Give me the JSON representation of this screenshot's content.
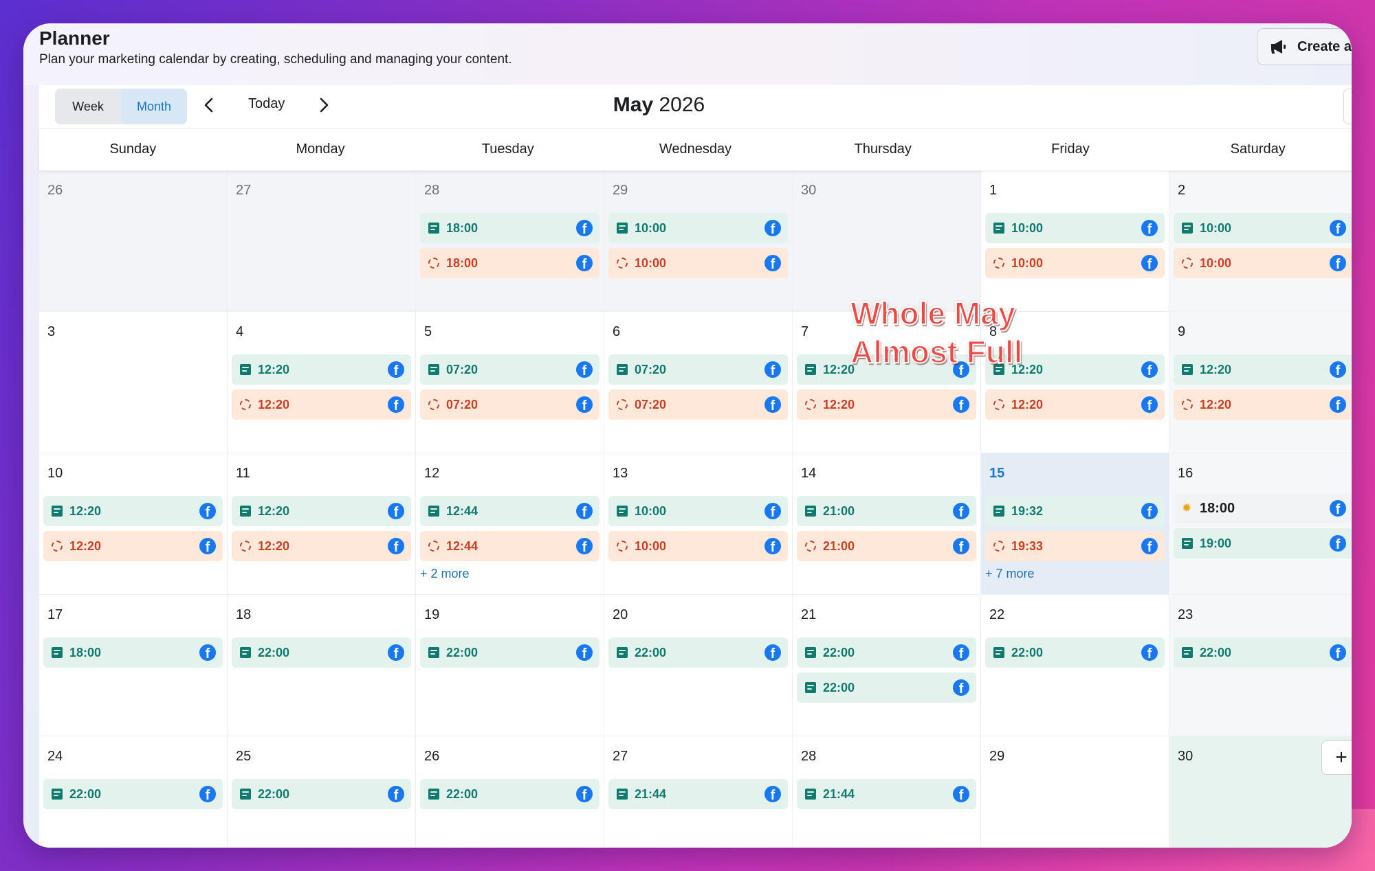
{
  "header": {
    "title": "Planner",
    "subtitle": "Plan your marketing calendar by creating, scheduling and managing your content.",
    "create_button": "Create ad"
  },
  "toolbar": {
    "view_week": "Week",
    "view_month": "Month",
    "active_view": "Month",
    "today_label": "Today",
    "month_name": "May",
    "year": "2026"
  },
  "weekdays": [
    "Sunday",
    "Monday",
    "Tuesday",
    "Wednesday",
    "Thursday",
    "Friday",
    "Saturday"
  ],
  "overlay_note": [
    "Whole May",
    "Almost Full"
  ],
  "colors": {
    "post_bg": "#e4f2ee",
    "post_text": "#0f7a6e",
    "draft_bg": "#fde8da",
    "draft_text": "#cc3f24",
    "today_bg": "#e4ecf6",
    "accent": "#1877f2"
  },
  "weeks": [
    [
      {
        "day": "26",
        "outside": true,
        "events": []
      },
      {
        "day": "27",
        "outside": true,
        "events": []
      },
      {
        "day": "28",
        "outside": true,
        "events": [
          {
            "type": "post",
            "time": "18:00"
          },
          {
            "type": "draft",
            "time": "18:00"
          }
        ]
      },
      {
        "day": "29",
        "outside": true,
        "events": [
          {
            "type": "post",
            "time": "10:00"
          },
          {
            "type": "draft",
            "time": "10:00"
          }
        ]
      },
      {
        "day": "30",
        "outside": true,
        "events": []
      },
      {
        "day": "1",
        "events": [
          {
            "type": "post",
            "time": "10:00"
          },
          {
            "type": "draft",
            "time": "10:00"
          }
        ]
      },
      {
        "day": "2",
        "weekend": true,
        "events": [
          {
            "type": "post",
            "time": "10:00"
          },
          {
            "type": "draft",
            "time": "10:00"
          }
        ]
      }
    ],
    [
      {
        "day": "3",
        "events": []
      },
      {
        "day": "4",
        "events": [
          {
            "type": "post",
            "time": "12:20"
          },
          {
            "type": "draft",
            "time": "12:20"
          }
        ]
      },
      {
        "day": "5",
        "events": [
          {
            "type": "post",
            "time": "07:20"
          },
          {
            "type": "draft",
            "time": "07:20"
          }
        ]
      },
      {
        "day": "6",
        "events": [
          {
            "type": "post",
            "time": "07:20"
          },
          {
            "type": "draft",
            "time": "07:20"
          }
        ]
      },
      {
        "day": "7",
        "events": [
          {
            "type": "post",
            "time": "12:20"
          },
          {
            "type": "draft",
            "time": "12:20"
          }
        ]
      },
      {
        "day": "8",
        "events": [
          {
            "type": "post",
            "time": "12:20"
          },
          {
            "type": "draft",
            "time": "12:20"
          }
        ]
      },
      {
        "day": "9",
        "weekend": true,
        "events": [
          {
            "type": "post",
            "time": "12:20"
          },
          {
            "type": "draft",
            "time": "12:20"
          }
        ]
      }
    ],
    [
      {
        "day": "10",
        "events": [
          {
            "type": "post",
            "time": "12:20"
          },
          {
            "type": "draft",
            "time": "12:20"
          }
        ]
      },
      {
        "day": "11",
        "events": [
          {
            "type": "post",
            "time": "12:20"
          },
          {
            "type": "draft",
            "time": "12:20"
          }
        ]
      },
      {
        "day": "12",
        "events": [
          {
            "type": "post",
            "time": "12:44"
          },
          {
            "type": "draft",
            "time": "12:44"
          }
        ],
        "more": "+ 2 more"
      },
      {
        "day": "13",
        "events": [
          {
            "type": "post",
            "time": "10:00"
          },
          {
            "type": "draft",
            "time": "10:00"
          }
        ]
      },
      {
        "day": "14",
        "events": [
          {
            "type": "post",
            "time": "21:00"
          },
          {
            "type": "draft",
            "time": "21:00"
          }
        ]
      },
      {
        "day": "15",
        "today": true,
        "events": [
          {
            "type": "post",
            "time": "19:32"
          },
          {
            "type": "draft",
            "time": "19:33"
          }
        ],
        "more": "+ 7 more"
      },
      {
        "day": "16",
        "weekend": true,
        "events": [
          {
            "type": "plain",
            "time": "18:00"
          },
          {
            "type": "post",
            "time": "19:00"
          }
        ]
      }
    ],
    [
      {
        "day": "17",
        "events": [
          {
            "type": "post",
            "time": "18:00"
          }
        ]
      },
      {
        "day": "18",
        "events": [
          {
            "type": "post",
            "time": "22:00"
          }
        ]
      },
      {
        "day": "19",
        "events": [
          {
            "type": "post",
            "time": "22:00"
          }
        ]
      },
      {
        "day": "20",
        "events": [
          {
            "type": "post",
            "time": "22:00"
          }
        ]
      },
      {
        "day": "21",
        "events": [
          {
            "type": "post",
            "time": "22:00"
          },
          {
            "type": "post",
            "time": "22:00"
          }
        ]
      },
      {
        "day": "22",
        "events": [
          {
            "type": "post",
            "time": "22:00"
          }
        ]
      },
      {
        "day": "23",
        "weekend": true,
        "events": [
          {
            "type": "post",
            "time": "22:00"
          }
        ]
      }
    ],
    [
      {
        "day": "24",
        "events": [
          {
            "type": "post",
            "time": "22:00"
          }
        ]
      },
      {
        "day": "25",
        "events": [
          {
            "type": "post",
            "time": "22:00"
          }
        ]
      },
      {
        "day": "26",
        "events": [
          {
            "type": "post",
            "time": "22:00"
          }
        ]
      },
      {
        "day": "27",
        "events": [
          {
            "type": "post",
            "time": "21:44"
          }
        ]
      },
      {
        "day": "28",
        "events": [
          {
            "type": "post",
            "time": "21:44"
          }
        ]
      },
      {
        "day": "29",
        "events": []
      },
      {
        "day": "30",
        "teal": true,
        "add_button": "+",
        "events": []
      }
    ]
  ]
}
